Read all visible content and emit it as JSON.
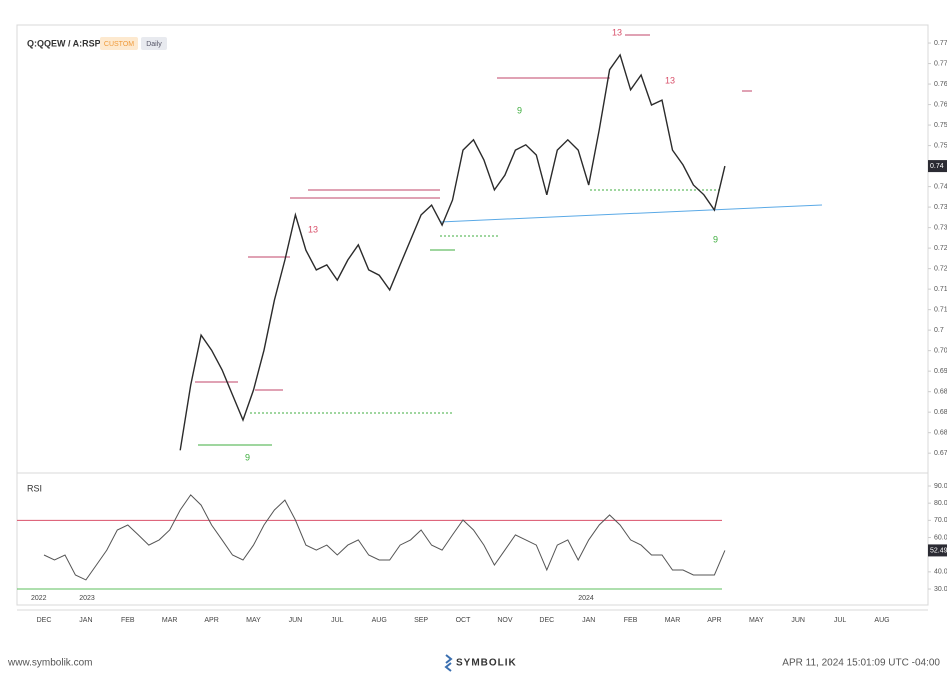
{
  "header": {
    "title": "Q:QQEW / A:RSP",
    "badges": [
      "CUSTOM",
      "Daily"
    ]
  },
  "footer": {
    "site": "www.symbolik.com",
    "brand": "SYMBOLIK",
    "timestamp": "APR 11, 2024 15:01:09 UTC -04:00"
  },
  "chart_data": [
    {
      "type": "line",
      "color": "#2b2b2b",
      "ylim": [
        0.6659,
        0.7744
      ],
      "yticks": [
        0.67,
        {
          "value": 0.675,
          "label": "0.68"
        },
        0.68,
        {
          "value": 0.685,
          "label": "0.68"
        },
        0.69,
        {
          "value": 0.695,
          "label": "0.70"
        },
        0.7,
        {
          "value": 0.705,
          "label": "0.71"
        },
        0.71,
        {
          "value": 0.715,
          "label": "0.72"
        },
        0.72,
        {
          "value": 0.725,
          "label": "0.73"
        },
        0.73,
        {
          "value": 0.735,
          "label": "0.74"
        },
        0.74,
        {
          "value": 0.745,
          "label": "0.75"
        },
        0.75,
        {
          "value": 0.755,
          "label": "0.76"
        },
        0.76,
        {
          "value": 0.765,
          "label": "0.77"
        },
        0.77
      ],
      "annotations": [
        "13",
        "13",
        "13",
        "9",
        "9",
        "9"
      ],
      "values": [
        null,
        null,
        null,
        null,
        null,
        null,
        null,
        null,
        null,
        null,
        null,
        null,
        null,
        0.6707,
        0.6866,
        0.6988,
        0.6951,
        0.6903,
        0.6842,
        0.6781,
        0.6854,
        0.6951,
        0.7073,
        0.7171,
        0.7281,
        0.7195,
        0.7147,
        0.7159,
        0.7122,
        0.7171,
        0.7208,
        0.7147,
        0.7134,
        0.7098,
        0.7159,
        0.722,
        0.7281,
        0.7305,
        0.7256,
        0.7317,
        0.7439,
        0.7464,
        0.7415,
        0.7342,
        0.7378,
        0.7439,
        0.7452,
        0.7427,
        0.733,
        0.7439,
        0.7464,
        0.7439,
        0.7354,
        0.7488,
        0.7635,
        0.7671,
        0.7586,
        0.7622,
        0.7549,
        0.7561,
        0.7439,
        0.7403,
        0.7354,
        0.733,
        0.7293,
        0.74,
        null,
        null,
        null,
        null,
        null,
        null,
        null,
        null,
        null,
        null,
        null,
        null,
        null,
        null,
        null,
        null,
        null,
        null
      ]
    },
    {
      "type": "line",
      "title": "RSI",
      "color": "#555555",
      "ylim": [
        20.7,
        93.5
      ],
      "yticks": [
        {
          "value": 90,
          "label": "90.00"
        },
        {
          "value": 80,
          "label": "80.00"
        },
        {
          "value": 70,
          "label": "70.00"
        },
        {
          "value": 60,
          "label": "60.00"
        },
        {
          "value": 40,
          "label": "40.00"
        },
        {
          "value": 30,
          "label": "30.00"
        }
      ],
      "levels": [
        {
          "value": 70,
          "color": "#d9506a"
        },
        {
          "value": 30,
          "color": "#5cbf5c"
        }
      ],
      "years": [
        "2022",
        "2023",
        "2024"
      ],
      "categories": [
        "DEC",
        null,
        null,
        null,
        "JAN",
        null,
        null,
        null,
        "FEB",
        null,
        null,
        null,
        "MAR",
        null,
        null,
        null,
        "APR",
        null,
        null,
        null,
        "MAY",
        null,
        null,
        null,
        "JUN",
        null,
        null,
        null,
        "JUL",
        null,
        null,
        null,
        "AUG",
        null,
        null,
        null,
        "SEP",
        null,
        null,
        null,
        "OCT",
        null,
        null,
        null,
        "NOV",
        null,
        null,
        null,
        "DEC",
        null,
        null,
        null,
        "JAN",
        null,
        null,
        null,
        "FEB",
        null,
        null,
        null,
        "MAR",
        null,
        null,
        null,
        "APR",
        null,
        null,
        null,
        "MAY",
        null,
        null,
        null,
        "JUN",
        null,
        null,
        null,
        "JUL",
        null,
        null,
        null,
        "AUG",
        null,
        null,
        null
      ],
      "values": [
        49.8,
        46.9,
        49.8,
        38.2,
        35.3,
        44.0,
        52.7,
        64.4,
        67.3,
        61.5,
        55.6,
        58.6,
        64.4,
        76.0,
        84.8,
        78.9,
        67.3,
        58.6,
        49.8,
        46.9,
        55.6,
        67.3,
        76.0,
        81.8,
        70.2,
        55.6,
        52.7,
        55.6,
        49.8,
        55.6,
        58.6,
        49.8,
        46.9,
        46.9,
        55.6,
        58.6,
        64.4,
        55.6,
        52.7,
        61.5,
        70.2,
        64.4,
        55.6,
        44.0,
        52.7,
        61.5,
        58.6,
        55.6,
        41.1,
        55.6,
        58.6,
        46.9,
        58.6,
        67.3,
        73.1,
        67.3,
        58.6,
        55.6,
        49.8,
        49.8,
        41.1,
        41.1,
        38.2,
        38.2,
        38.2,
        52.49,
        null,
        null,
        null,
        null,
        null,
        null,
        null,
        null,
        null,
        null,
        null,
        null,
        null,
        null,
        null,
        null,
        null,
        null
      ]
    }
  ]
}
